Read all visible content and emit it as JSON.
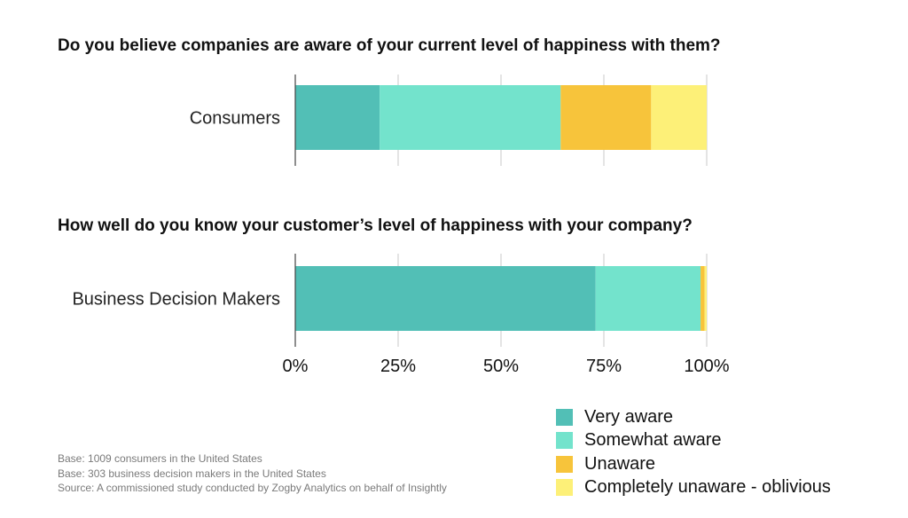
{
  "questions": [
    "Do you believe companies are aware of your current level of happiness with them?",
    "How well do you know your customer’s level of happiness with your company?"
  ],
  "chart_data": {
    "type": "bar",
    "orientation": "horizontal",
    "stacked": true,
    "categories": [
      "Consumers",
      "Business Decision Makers"
    ],
    "series": [
      {
        "name": "Very aware",
        "values": [
          20.5,
          73
        ],
        "color": "#52bfb6"
      },
      {
        "name": "Somewhat aware",
        "values": [
          44,
          25.5
        ],
        "color": "#73e3cc"
      },
      {
        "name": "Unaware",
        "values": [
          22,
          1
        ],
        "color": "#f7c43b"
      },
      {
        "name": "Completely unaware - oblivious",
        "values": [
          13.5,
          0.5
        ],
        "color": "#fdf078"
      }
    ],
    "xlim": [
      0,
      100
    ],
    "xticks": [
      "0%",
      "25%",
      "50%",
      "75%",
      "100%"
    ],
    "grid": true,
    "legend_position": "bottom-right"
  },
  "notes": [
    "Base: 1009 consumers in the United States",
    "Base: 303 business decision makers in the United States",
    "Source:  A commissioned study conducted by Zogby Analytics on behalf of Insightly"
  ]
}
